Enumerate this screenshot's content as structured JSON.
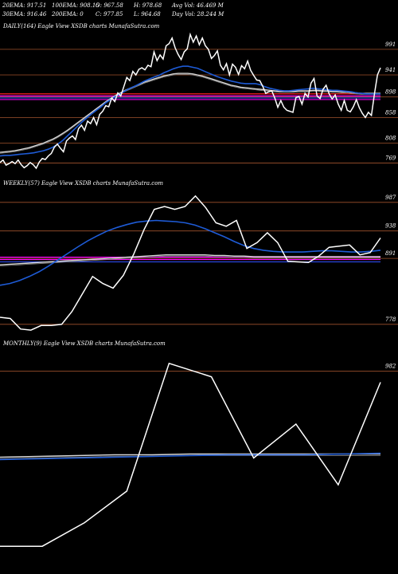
{
  "header": {
    "ema20": "20EMA: 917.51",
    "ema100": "100EMA: 908.15",
    "open": "O: 967.58",
    "high": "H: 978.68",
    "avg_vol": "Avg Vol: 46.469  M",
    "ema30": "30EMA: 916.46",
    "ema200": "200EMA: 0",
    "close": "C: 977.85",
    "low": "L: 964.68",
    "day_vol": "Day Vol: 28.244  M"
  },
  "colors": {
    "background": "#000000",
    "price": "#ffffff",
    "ema_fast": "#1e5bd6",
    "ema_slow": "#d8d8d8",
    "level": "#a0522d",
    "support": "#ff00ff",
    "support_alt": "#ff2020",
    "support_blue": "#3050ff"
  },
  "chart_data": [
    {
      "type": "line",
      "title": "DAILY(164) Eagle  View  XSDB charts MunafaSutra.com",
      "levels": [
        "991",
        "941",
        "898",
        "858",
        "808",
        "769"
      ],
      "price": [
        770,
        775,
        765,
        768,
        772,
        768,
        775,
        766,
        760,
        764,
        770,
        766,
        759,
        771,
        778,
        776,
        783,
        788,
        800,
        806,
        798,
        791,
        812,
        818,
        822,
        815,
        836,
        843,
        833,
        851,
        846,
        858,
        844,
        864,
        870,
        881,
        879,
        896,
        889,
        906,
        900,
        918,
        936,
        930,
        948,
        941,
        952,
        955,
        951,
        960,
        957,
        986,
        969,
        980,
        972,
        998,
        1002,
        1013,
        994,
        981,
        971,
        986,
        992,
        1020,
        1005,
        1017,
        1000,
        1013,
        998,
        991,
        973,
        979,
        988,
        960,
        951,
        963,
        941,
        962,
        956,
        942,
        959,
        953,
        968,
        950,
        940,
        931,
        930,
        919,
        905,
        908,
        910,
        896,
        878,
        891,
        878,
        872,
        870,
        868,
        897,
        899,
        884,
        905,
        898,
        925,
        934,
        900,
        895,
        913,
        921,
        904,
        894,
        902,
        884,
        872,
        891,
        872,
        869,
        879,
        893,
        877,
        866,
        858,
        868,
        862,
        904,
        941,
        955
      ],
      "ema_fast": [
        783,
        784,
        784,
        785,
        786,
        787,
        788,
        789,
        791,
        793,
        796,
        800,
        806,
        813,
        822,
        831,
        840,
        849,
        857,
        865,
        872,
        879,
        887,
        893,
        899,
        904,
        910,
        915,
        919,
        924,
        929,
        933,
        937,
        940,
        945,
        949,
        953,
        956,
        958,
        958,
        956,
        954,
        950,
        946,
        942,
        938,
        935,
        932,
        929,
        927,
        925,
        924,
        924,
        924,
        922,
        918,
        915,
        913,
        911,
        910,
        910,
        911,
        912,
        913,
        914,
        915,
        914,
        913,
        912,
        911,
        911,
        910,
        909,
        908,
        906,
        905,
        904,
        904,
        904,
        904
      ],
      "ema_slow": [
        790,
        791,
        792,
        793,
        795,
        797,
        799,
        802,
        805,
        808,
        812,
        816,
        821,
        827,
        833,
        840,
        847,
        854,
        861,
        868,
        875,
        882,
        889,
        895,
        901,
        906,
        911,
        915,
        919,
        923,
        927,
        930,
        933,
        936,
        939,
        941,
        943,
        944,
        944,
        944,
        943,
        941,
        939,
        936,
        933,
        930,
        927,
        924,
        921,
        919,
        917,
        916,
        915,
        914,
        913,
        912,
        911,
        910,
        909,
        909,
        909,
        909,
        910,
        910,
        910,
        911,
        911,
        910,
        910,
        909,
        909,
        908,
        908,
        907,
        906,
        905,
        905,
        905,
        905,
        905
      ],
      "ylim": [
        745,
        1025
      ]
    },
    {
      "type": "line",
      "title": "WEEKLY(57) Eagle  View  XSDB charts MunafaSutra.com",
      "levels": [
        "987",
        "938",
        "891",
        "778"
      ],
      "price": [
        790,
        788,
        770,
        768,
        776,
        776,
        778,
        800,
        830,
        860,
        848,
        840,
        862,
        898,
        940,
        975,
        980,
        975,
        980,
        998,
        978,
        952,
        946,
        956,
        908,
        918,
        935,
        918,
        886,
        885,
        884,
        895,
        910,
        912,
        914,
        897,
        901,
        926
      ],
      "ema_fast": [
        845,
        848,
        853,
        860,
        868,
        878,
        889,
        900,
        911,
        921,
        930,
        938,
        944,
        949,
        953,
        955,
        956,
        955,
        954,
        952,
        948,
        942,
        935,
        928,
        920,
        913,
        908,
        905,
        903,
        902,
        902,
        902,
        903,
        904,
        904,
        903,
        902,
        902,
        903,
        905
      ],
      "ema_slow": [
        880,
        881,
        882,
        883,
        884,
        885,
        886,
        887,
        888,
        889,
        890,
        891,
        892,
        893,
        894,
        895,
        896,
        897,
        897,
        897,
        897,
        897,
        896,
        896,
        895,
        895,
        894,
        894,
        894,
        894,
        894,
        894,
        894,
        894,
        894,
        894,
        894,
        894,
        894,
        894
      ],
      "ylim": [
        760,
        1010
      ]
    },
    {
      "type": "line",
      "title": "MONTHLY(9) Eagle  View  XSDB charts MunafaSutra.com",
      "levels": [
        "982"
      ],
      "price": [
        760,
        760,
        790,
        830,
        992,
        975,
        872,
        915,
        838,
        968
      ],
      "ema_fast": [
        870,
        871,
        872,
        873,
        874,
        875,
        876,
        876,
        876,
        877,
        878
      ],
      "ema_slow": [
        873,
        874,
        875,
        876,
        876,
        877,
        877,
        877,
        877,
        877,
        877
      ],
      "ylim": [
        740,
        1010
      ]
    }
  ]
}
